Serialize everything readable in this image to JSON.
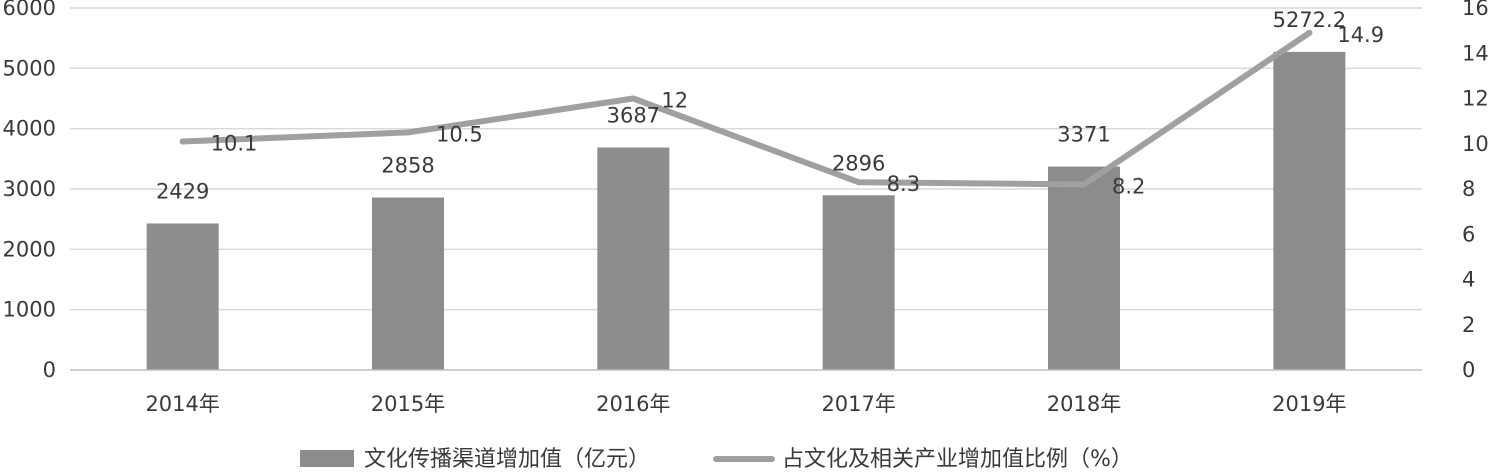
{
  "chart_data": {
    "type": "bar",
    "categories": [
      "2014年",
      "2015年",
      "2016年",
      "2017年",
      "2018年",
      "2019年"
    ],
    "series": [
      {
        "name": "文化传播渠道增加值（亿元）",
        "kind": "bar",
        "axis": "left",
        "color": "#8c8c8c",
        "values": [
          2429,
          2858,
          3687,
          2896,
          3371,
          5272.2
        ],
        "labels": [
          "2429",
          "2858",
          "3687",
          "2896",
          "3371",
          "5272.2"
        ]
      },
      {
        "name": "占文化及相关产业增加值比例（%）",
        "kind": "line",
        "axis": "right",
        "color": "#a0a0a0",
        "values": [
          10.1,
          10.5,
          12,
          8.3,
          8.2,
          14.9
        ],
        "labels": [
          "10.1",
          "10.5",
          "12",
          "8.3",
          "8.2",
          "14.9"
        ]
      }
    ],
    "y_left": {
      "min": 0,
      "max": 6000,
      "ticks": [
        0,
        1000,
        2000,
        3000,
        4000,
        5000,
        6000
      ]
    },
    "y_right": {
      "min": 0,
      "max": 16,
      "ticks": [
        0,
        2,
        4,
        6,
        8,
        10,
        12,
        14,
        16
      ]
    },
    "grid": true,
    "legend_position": "bottom",
    "title": "",
    "xlabel": "",
    "ylabel": ""
  }
}
